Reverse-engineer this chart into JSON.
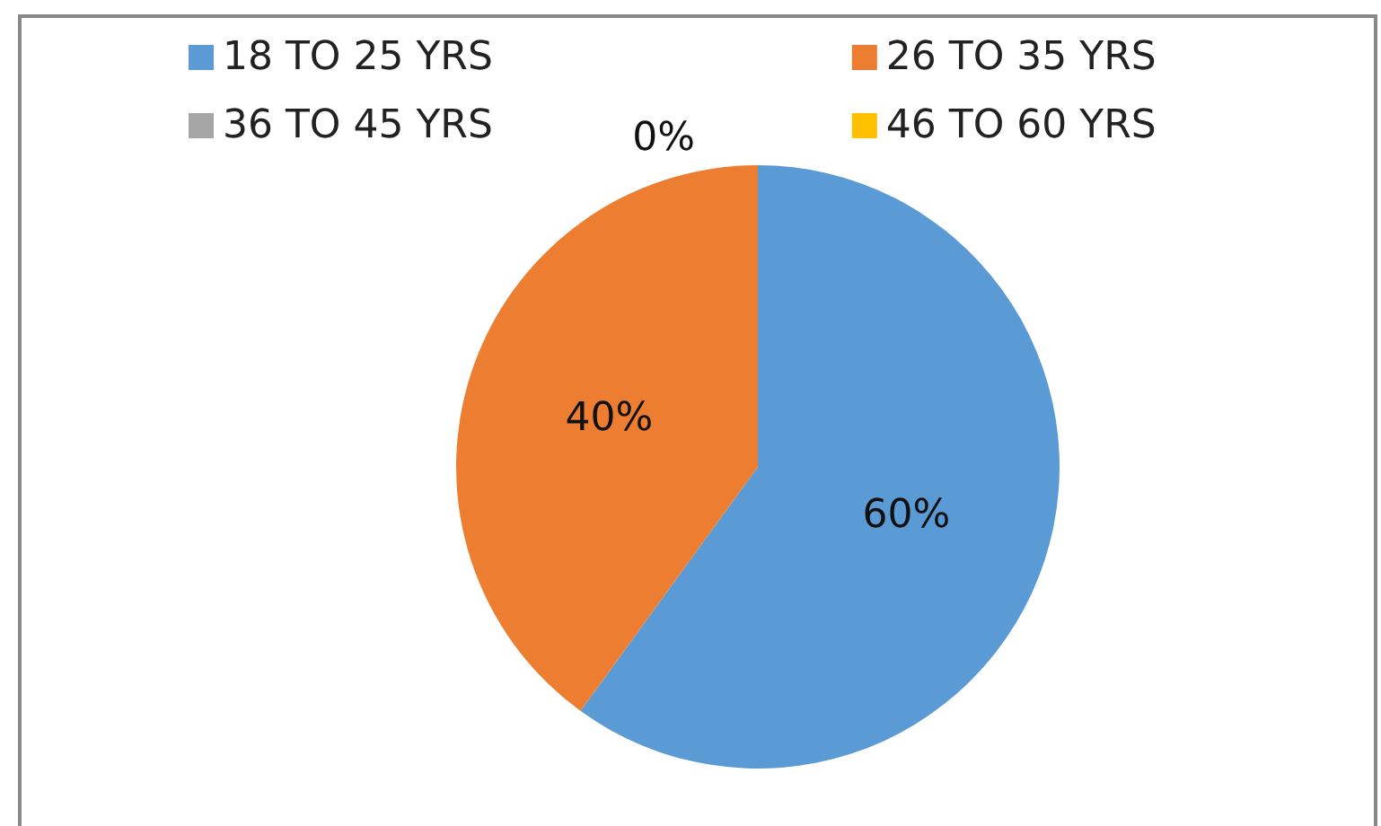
{
  "chart_data": {
    "type": "pie",
    "categories": [
      "18 TO 25 YRS",
      "26 TO 35 YRS",
      "36 TO 45 YRS",
      "46 TO 60 YRS"
    ],
    "values": [
      60,
      40,
      0,
      0
    ],
    "colors": [
      "#5b9bd5",
      "#ed7d31",
      "#a5a5a5",
      "#ffc000"
    ],
    "value_labels": [
      "60%",
      "40%",
      "0%",
      null
    ],
    "legend": "top"
  }
}
